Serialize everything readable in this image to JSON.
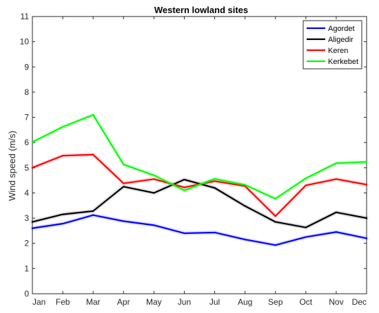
{
  "chart_data": {
    "type": "line",
    "title": "Western lowland sites",
    "xlabel": "",
    "ylabel": "Wind speed (m/s)",
    "categories": [
      "Jan",
      "Feb",
      "Mar",
      "Apr",
      "May",
      "Jun",
      "Jul",
      "Aug",
      "Sep",
      "Oct",
      "Nov",
      "Dec"
    ],
    "ylim": [
      0,
      11
    ],
    "yticks": [
      "0",
      "1",
      "2",
      "3",
      "4",
      "5",
      "6",
      "7",
      "8",
      "9",
      "10",
      "11"
    ],
    "grid": false,
    "legend_position": "top-right",
    "series": [
      {
        "name": "Agordet",
        "color": "#0000ff",
        "values": [
          2.6,
          2.78,
          3.12,
          2.88,
          2.72,
          2.4,
          2.43,
          2.15,
          1.93,
          2.25,
          2.45,
          2.2
        ]
      },
      {
        "name": "Aligedir",
        "color": "#000000",
        "values": [
          2.85,
          3.15,
          3.28,
          4.25,
          4.0,
          4.53,
          4.2,
          3.48,
          2.85,
          2.63,
          3.23,
          3.0
        ]
      },
      {
        "name": "Keren",
        "color": "#ff0000",
        "values": [
          5.0,
          5.48,
          5.52,
          4.38,
          4.55,
          4.22,
          4.47,
          4.27,
          3.08,
          4.3,
          4.55,
          4.33
        ]
      },
      {
        "name": "Kerkebet",
        "color": "#00ff00",
        "values": [
          6.02,
          6.62,
          7.1,
          5.13,
          4.7,
          4.1,
          4.56,
          4.32,
          3.77,
          4.58,
          5.18,
          5.23
        ]
      }
    ]
  }
}
